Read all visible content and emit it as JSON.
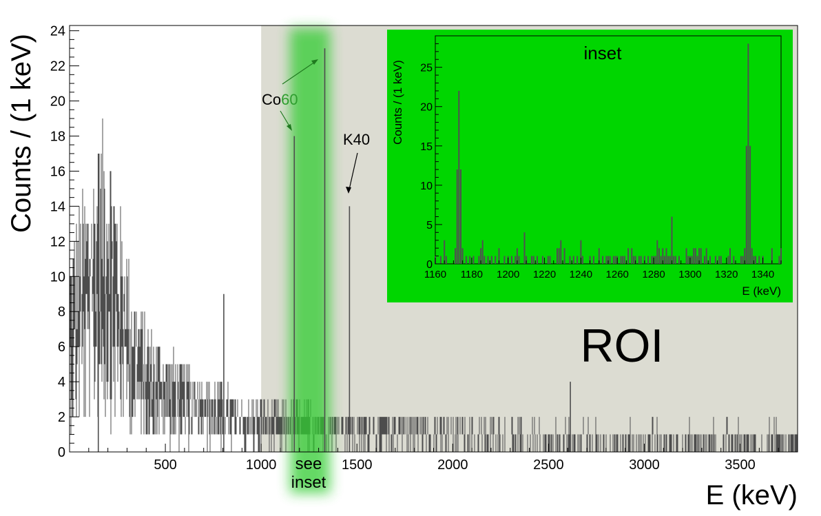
{
  "chart_data": [
    {
      "type": "histogram",
      "xlabel": "E (keV)",
      "ylabel": "Counts / (1 keV)",
      "xlim": [
        0,
        3800
      ],
      "ylim": [
        0,
        24.3
      ],
      "xticks": [
        500,
        1000,
        1500,
        2000,
        2500,
        3000,
        3500
      ],
      "yticks": [
        0,
        2,
        4,
        6,
        8,
        10,
        12,
        14,
        16,
        18,
        20,
        22,
        24
      ],
      "bin_width_kev": 1,
      "envelope": [
        {
          "e": 0,
          "counts": 8
        },
        {
          "e": 40,
          "counts": 9
        },
        {
          "e": 80,
          "counts": 10
        },
        {
          "e": 120,
          "counts": 11
        },
        {
          "e": 160,
          "counts": 12
        },
        {
          "e": 200,
          "counts": 13
        },
        {
          "e": 250,
          "counts": 10
        },
        {
          "e": 300,
          "counts": 8
        },
        {
          "e": 350,
          "counts": 6
        },
        {
          "e": 400,
          "counts": 5
        },
        {
          "e": 450,
          "counts": 4.5
        },
        {
          "e": 500,
          "counts": 4
        },
        {
          "e": 600,
          "counts": 3.5
        },
        {
          "e": 700,
          "counts": 3
        },
        {
          "e": 800,
          "counts": 2.5
        },
        {
          "e": 900,
          "counts": 2
        },
        {
          "e": 1000,
          "counts": 2
        },
        {
          "e": 1200,
          "counts": 1.8
        },
        {
          "e": 1500,
          "counts": 1.5
        },
        {
          "e": 2000,
          "counts": 1.2
        },
        {
          "e": 2500,
          "counts": 1
        },
        {
          "e": 3000,
          "counts": 1
        },
        {
          "e": 3500,
          "counts": 1
        },
        {
          "e": 3800,
          "counts": 1
        }
      ],
      "peaks": [
        {
          "e": 1173,
          "counts": 18
        },
        {
          "e": 1332,
          "counts": 23
        },
        {
          "e": 1461,
          "counts": 14
        },
        {
          "e": 150,
          "counts": 17
        },
        {
          "e": 805,
          "counts": 9
        },
        {
          "e": 2614,
          "counts": 4
        }
      ],
      "roi_range": [
        1000,
        3800
      ],
      "roi_color": "#dcdcd2",
      "highlight_band": [
        1150,
        1360
      ],
      "highlight_color": "#33cc33",
      "line_color": "#4d4d4d"
    },
    {
      "type": "histogram",
      "title": "inset",
      "xlabel": "E (keV)",
      "ylabel": "Counts / (1 keV)",
      "xlim": [
        1160,
        1350
      ],
      "ylim": [
        0,
        29
      ],
      "xticks": [
        1160,
        1180,
        1200,
        1220,
        1240,
        1260,
        1280,
        1300,
        1320,
        1340
      ],
      "yticks": [
        0,
        5,
        10,
        15,
        20,
        25
      ],
      "background_color": "#00d600",
      "peaks": [
        {
          "e": 1173,
          "counts": 22
        },
        {
          "e": 1332,
          "counts": 28
        }
      ],
      "minor_peaks": [
        {
          "e": 1165,
          "counts": 3
        },
        {
          "e": 1186,
          "counts": 3
        },
        {
          "e": 1209,
          "counts": 4
        },
        {
          "e": 1229,
          "counts": 3
        },
        {
          "e": 1240,
          "counts": 3
        },
        {
          "e": 1282,
          "counts": 3
        },
        {
          "e": 1290,
          "counts": 6
        },
        {
          "e": 1322,
          "counts": 2
        },
        {
          "e": 1345,
          "counts": 2
        }
      ]
    }
  ],
  "annotations": {
    "co60_prefix": "Co",
    "co60_suffix": "60",
    "k40": "K40",
    "roi": "ROI",
    "see_inset_line1": "see",
    "see_inset_line2": "inset"
  },
  "colors": {
    "co60_suffix": "#2e9e2e",
    "arrow_green": "#1f7a1f",
    "arrow_black": "#000000"
  }
}
